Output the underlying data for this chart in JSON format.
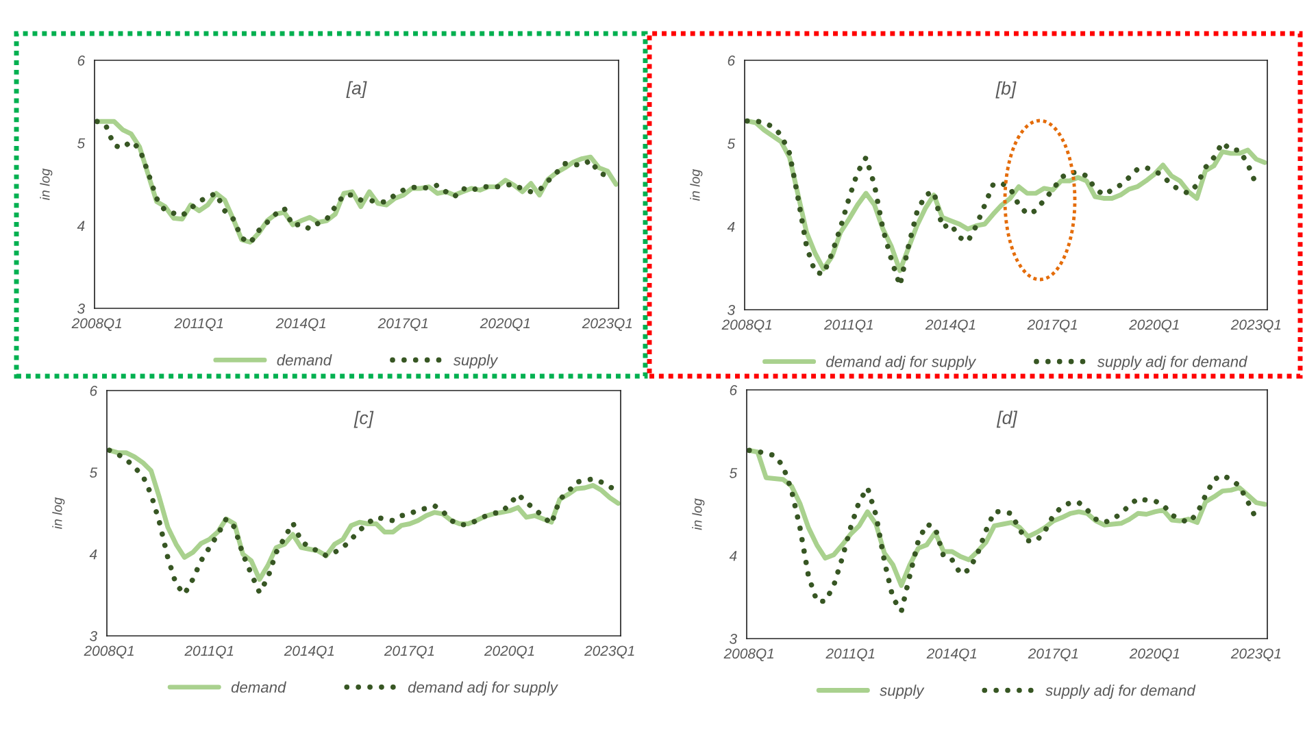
{
  "chart_data": [
    {
      "type": "line",
      "title": "[a]",
      "ylabel": "in log",
      "categories": [
        "2008Q1",
        null,
        null,
        null,
        null,
        null,
        null,
        null,
        null,
        null,
        null,
        null,
        "2011Q1",
        null,
        null,
        null,
        null,
        null,
        null,
        null,
        null,
        null,
        null,
        null,
        "2014Q1",
        null,
        null,
        null,
        null,
        null,
        null,
        null,
        null,
        null,
        null,
        null,
        "2017Q1",
        null,
        null,
        null,
        null,
        null,
        null,
        null,
        null,
        null,
        null,
        null,
        "2020Q1",
        null,
        null,
        null,
        null,
        null,
        null,
        null,
        null,
        null,
        null,
        null,
        "2023Q1",
        null
      ],
      "ylim": [
        3,
        6
      ],
      "yticks": [
        3,
        4,
        5,
        6
      ],
      "grid": false,
      "legend": "bottom",
      "series": [
        {
          "name": "demand",
          "color": "#a9d18e",
          "line_style": "solid",
          "values": [
            5.26,
            5.26,
            5.26,
            5.16,
            5.11,
            4.95,
            4.62,
            4.29,
            4.23,
            4.09,
            4.08,
            4.25,
            4.18,
            4.25,
            4.39,
            4.31,
            4.08,
            3.83,
            3.8,
            3.91,
            4.06,
            4.14,
            4.16,
            4.01,
            4.06,
            4.1,
            4.04,
            4.06,
            4.14,
            4.39,
            4.41,
            4.23,
            4.41,
            4.27,
            4.25,
            4.33,
            4.37,
            4.45,
            4.45,
            4.47,
            4.39,
            4.41,
            4.37,
            4.41,
            4.45,
            4.43,
            4.47,
            4.47,
            4.55,
            4.49,
            4.41,
            4.51,
            4.37,
            4.56,
            4.64,
            4.7,
            4.77,
            4.81,
            4.83,
            4.7,
            4.66,
            4.5
          ]
        },
        {
          "name": "supply",
          "color": "#375623",
          "line_style": "dotted",
          "values": [
            5.26,
            5.22,
            4.97,
            4.94,
            5.02,
            4.93,
            4.64,
            4.33,
            4.18,
            4.15,
            4.12,
            4.21,
            4.29,
            4.35,
            4.39,
            4.18,
            4.08,
            3.85,
            3.79,
            3.94,
            4.04,
            4.14,
            4.21,
            4.0,
            4.02,
            3.96,
            4.03,
            4.08,
            4.23,
            4.37,
            4.37,
            4.31,
            4.31,
            4.28,
            4.29,
            4.37,
            4.43,
            4.46,
            4.47,
            4.45,
            4.49,
            4.41,
            4.35,
            4.45,
            4.42,
            4.47,
            4.47,
            4.47,
            4.49,
            4.5,
            4.44,
            4.41,
            4.43,
            4.54,
            4.64,
            4.75,
            4.74,
            4.73,
            4.79,
            4.64,
            4.6,
            null
          ]
        }
      ]
    },
    {
      "type": "line",
      "title": "[b]",
      "ylabel": "in log",
      "categories": [
        "2008Q1",
        null,
        null,
        null,
        null,
        null,
        null,
        null,
        null,
        null,
        null,
        null,
        "2011Q1",
        null,
        null,
        null,
        null,
        null,
        null,
        null,
        null,
        null,
        null,
        null,
        "2014Q1",
        null,
        null,
        null,
        null,
        null,
        null,
        null,
        null,
        null,
        null,
        null,
        "2017Q1",
        null,
        null,
        null,
        null,
        null,
        null,
        null,
        null,
        null,
        null,
        null,
        "2020Q1",
        null,
        null,
        null,
        null,
        null,
        null,
        null,
        null,
        null,
        null,
        null,
        "2023Q1",
        null
      ],
      "ylim": [
        3,
        6
      ],
      "yticks": [
        3,
        4,
        5,
        6
      ],
      "grid": false,
      "legend": "bottom",
      "series": [
        {
          "name": "demand adj for supply",
          "color": "#a9d18e",
          "line_style": "solid",
          "values": [
            5.27,
            5.25,
            5.16,
            5.09,
            5.02,
            4.83,
            4.38,
            3.93,
            3.68,
            3.49,
            3.64,
            3.93,
            4.09,
            4.26,
            4.4,
            4.26,
            3.97,
            3.76,
            3.47,
            3.74,
            4.01,
            4.22,
            4.38,
            4.11,
            4.07,
            4.03,
            3.97,
            4.01,
            4.03,
            4.15,
            4.26,
            4.34,
            4.48,
            4.4,
            4.4,
            4.46,
            4.44,
            4.55,
            4.55,
            4.59,
            4.55,
            4.36,
            4.34,
            4.34,
            4.38,
            4.45,
            4.48,
            4.55,
            4.63,
            4.74,
            4.61,
            4.55,
            4.42,
            4.34,
            4.67,
            4.73,
            4.9,
            4.88,
            4.88,
            4.92,
            4.81,
            4.77
          ]
        },
        {
          "name": "supply adj for demand",
          "color": "#375623",
          "line_style": "dotted",
          "values": [
            5.27,
            5.27,
            5.25,
            5.2,
            5.1,
            4.88,
            4.34,
            3.76,
            3.45,
            3.43,
            3.68,
            3.99,
            4.34,
            4.65,
            4.83,
            4.5,
            3.97,
            3.6,
            3.29,
            3.76,
            4.17,
            4.38,
            4.42,
            3.99,
            4.03,
            3.87,
            3.82,
            4.01,
            4.26,
            4.51,
            4.52,
            4.46,
            4.26,
            4.15,
            4.19,
            4.32,
            4.44,
            4.59,
            4.65,
            4.65,
            4.61,
            4.46,
            4.38,
            4.44,
            4.5,
            4.59,
            4.69,
            4.71,
            4.67,
            4.61,
            4.5,
            4.44,
            4.4,
            4.5,
            4.71,
            4.83,
            5.01,
            4.92,
            4.92,
            4.75,
            4.5,
            null
          ]
        }
      ]
    },
    {
      "type": "line",
      "title": "[c]",
      "ylabel": "in log",
      "categories": [
        "2008Q1",
        null,
        null,
        null,
        null,
        null,
        null,
        null,
        null,
        null,
        null,
        null,
        "2011Q1",
        null,
        null,
        null,
        null,
        null,
        null,
        null,
        null,
        null,
        null,
        null,
        "2014Q1",
        null,
        null,
        null,
        null,
        null,
        null,
        null,
        null,
        null,
        null,
        null,
        "2017Q1",
        null,
        null,
        null,
        null,
        null,
        null,
        null,
        null,
        null,
        null,
        null,
        "2020Q1",
        null,
        null,
        null,
        null,
        null,
        null,
        null,
        null,
        null,
        null,
        null,
        "2023Q1",
        null
      ],
      "ylim": [
        3,
        6
      ],
      "yticks": [
        3,
        4,
        5,
        6
      ],
      "grid": false,
      "legend": "bottom",
      "series": [
        {
          "name": "demand",
          "color": "#a9d18e",
          "line_style": "solid",
          "values": [
            5.27,
            5.24,
            5.24,
            5.19,
            5.12,
            5.02,
            4.69,
            4.33,
            4.12,
            3.96,
            4.02,
            4.13,
            4.18,
            4.27,
            4.43,
            4.37,
            4.0,
            3.92,
            3.69,
            3.86,
            4.08,
            4.12,
            4.24,
            4.08,
            4.06,
            4.04,
            3.98,
            4.12,
            4.18,
            4.35,
            4.39,
            4.37,
            4.37,
            4.27,
            4.27,
            4.35,
            4.37,
            4.41,
            4.47,
            4.51,
            4.49,
            4.41,
            4.37,
            4.37,
            4.41,
            4.46,
            4.49,
            4.51,
            4.53,
            4.57,
            4.45,
            4.47,
            4.43,
            4.39,
            4.67,
            4.73,
            4.8,
            4.81,
            4.84,
            4.78,
            4.69,
            4.62
          ]
        },
        {
          "name": "demand adj for supply",
          "color": "#375623",
          "line_style": "dotted",
          "values": [
            5.27,
            5.22,
            5.16,
            5.06,
            4.96,
            4.73,
            4.39,
            3.96,
            3.63,
            3.51,
            3.69,
            3.92,
            4.08,
            4.24,
            4.43,
            4.33,
            4.0,
            3.76,
            3.53,
            3.71,
            4.02,
            4.2,
            4.38,
            4.16,
            4.08,
            4.04,
            3.98,
            4.02,
            4.08,
            4.18,
            4.29,
            4.38,
            4.45,
            4.43,
            4.41,
            4.47,
            4.49,
            4.54,
            4.56,
            4.59,
            4.52,
            4.41,
            4.36,
            4.36,
            4.41,
            4.46,
            4.5,
            4.51,
            4.61,
            4.73,
            4.63,
            4.55,
            4.46,
            4.37,
            4.67,
            4.76,
            4.88,
            4.9,
            4.92,
            4.88,
            4.82,
            4.78
          ]
        }
      ]
    },
    {
      "type": "line",
      "title": "[d]",
      "ylabel": "in log",
      "categories": [
        "2008Q1",
        null,
        null,
        null,
        null,
        null,
        null,
        null,
        null,
        null,
        null,
        null,
        "2011Q1",
        null,
        null,
        null,
        null,
        null,
        null,
        null,
        null,
        null,
        null,
        null,
        "2014Q1",
        null,
        null,
        null,
        null,
        null,
        null,
        null,
        null,
        null,
        null,
        null,
        "2017Q1",
        null,
        null,
        null,
        null,
        null,
        null,
        null,
        null,
        null,
        null,
        null,
        "2020Q1",
        null,
        null,
        null,
        null,
        null,
        null,
        null,
        null,
        null,
        null,
        null,
        "2023Q1",
        null
      ],
      "ylim": [
        3,
        6
      ],
      "yticks": [
        3,
        4,
        5,
        6
      ],
      "grid": false,
      "legend": "bottom",
      "series": [
        {
          "name": "supply",
          "color": "#a9d18e",
          "line_style": "solid",
          "values": [
            5.27,
            5.25,
            4.94,
            4.93,
            4.92,
            4.84,
            4.63,
            4.34,
            4.13,
            3.97,
            4.01,
            4.13,
            4.26,
            4.36,
            4.53,
            4.38,
            4.03,
            3.89,
            3.64,
            3.89,
            4.09,
            4.13,
            4.28,
            4.05,
            4.05,
            3.99,
            3.95,
            4.05,
            4.16,
            4.36,
            4.38,
            4.4,
            4.34,
            4.23,
            4.28,
            4.34,
            4.42,
            4.46,
            4.51,
            4.53,
            4.51,
            4.42,
            4.37,
            4.38,
            4.39,
            4.44,
            4.51,
            4.5,
            4.53,
            4.55,
            4.43,
            4.42,
            4.44,
            4.4,
            4.65,
            4.71,
            4.78,
            4.79,
            4.82,
            4.73,
            4.64,
            4.62
          ]
        },
        {
          "name": "supply adj for demand",
          "color": "#375623",
          "line_style": "dotted",
          "values": [
            5.27,
            5.26,
            5.23,
            5.21,
            5.08,
            4.79,
            4.34,
            3.76,
            3.45,
            3.45,
            3.64,
            3.97,
            4.34,
            4.65,
            4.82,
            4.49,
            3.93,
            3.49,
            3.33,
            3.76,
            4.18,
            4.38,
            4.34,
            3.99,
            3.95,
            3.78,
            3.83,
            4.02,
            4.3,
            4.53,
            4.53,
            4.51,
            4.31,
            4.18,
            4.18,
            4.3,
            4.49,
            4.59,
            4.64,
            4.64,
            4.55,
            4.44,
            4.4,
            4.44,
            4.51,
            4.61,
            4.69,
            4.67,
            4.66,
            4.61,
            4.49,
            4.44,
            4.4,
            4.51,
            4.73,
            4.92,
            4.97,
            4.92,
            4.84,
            4.65,
            4.44,
            null
          ]
        }
      ]
    }
  ]
}
